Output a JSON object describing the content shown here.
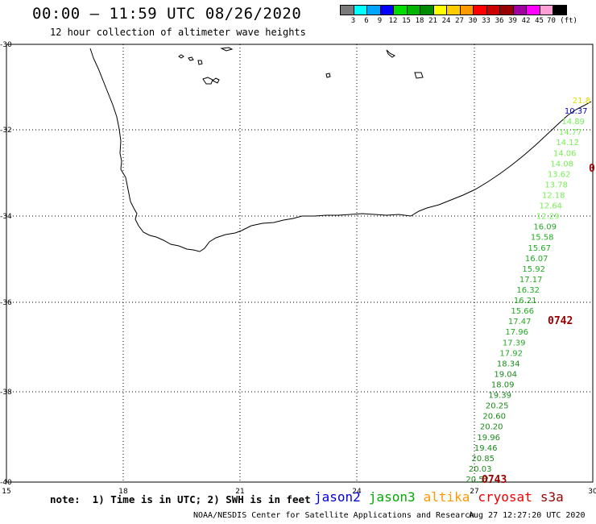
{
  "header": {
    "title": "00:00 – 11:59 UTC 08/26/2020",
    "subtitle": "12 hour collection of altimeter wave heights"
  },
  "colorbar": {
    "colors": [
      "#7a7a7a",
      "#00ffff",
      "#00a5ff",
      "#0000ff",
      "#00dd00",
      "#00b400",
      "#008a00",
      "#ffff00",
      "#ffcc00",
      "#ff9900",
      "#ff0000",
      "#cc0000",
      "#990000",
      "#a000a0",
      "#ff00ff",
      "#ff9fd6",
      "#000000"
    ],
    "labels": [
      "3",
      "6",
      "9",
      "12",
      "15",
      "18",
      "21",
      "24",
      "27",
      "30",
      "33",
      "36",
      "39",
      "42",
      "45",
      "70 (ft)"
    ]
  },
  "map": {
    "lat_labels": [
      "-30",
      "-32",
      "-34",
      "-36",
      "-38",
      "-40"
    ],
    "lon_labels": [
      "15",
      "18",
      "21",
      "24",
      "27",
      "30"
    ]
  },
  "track_readings": [
    {
      "value": "21.8",
      "color": "#e0e000"
    },
    {
      "value": "10.37",
      "color": "#0000cc"
    },
    {
      "value": "14.89",
      "color": "#77ee55"
    },
    {
      "value": "14.77",
      "color": "#77ee55"
    },
    {
      "value": "14.12",
      "color": "#77ee55"
    },
    {
      "value": "14.06",
      "color": "#77ee55"
    },
    {
      "value": "14.08",
      "color": "#77ee55"
    },
    {
      "value": "13.62",
      "color": "#77ee55"
    },
    {
      "value": "13.78",
      "color": "#77ee55"
    },
    {
      "value": "12.18",
      "color": "#77ee55"
    },
    {
      "value": "12.64",
      "color": "#77ee55"
    },
    {
      "value": "12.29",
      "color": "#77ee55"
    },
    {
      "value": "16.09",
      "color": "#22aa22"
    },
    {
      "value": "15.58",
      "color": "#22aa22"
    },
    {
      "value": "15.67",
      "color": "#22aa22"
    },
    {
      "value": "16.07",
      "color": "#22aa22"
    },
    {
      "value": "15.92",
      "color": "#22aa22"
    },
    {
      "value": "17.17",
      "color": "#22aa22"
    },
    {
      "value": "16.32",
      "color": "#22aa22"
    },
    {
      "value": "16.21",
      "color": "#22aa22"
    },
    {
      "value": "15.66",
      "color": "#22aa22"
    },
    {
      "value": "17.47",
      "color": "#22aa22"
    },
    {
      "value": "17.96",
      "color": "#22aa22"
    },
    {
      "value": "17.39",
      "color": "#22aa22"
    },
    {
      "value": "17.92",
      "color": "#22aa22"
    },
    {
      "value": "18.34",
      "color": "#1a8a1a"
    },
    {
      "value": "19.04",
      "color": "#1a8a1a"
    },
    {
      "value": "18.09",
      "color": "#1a8a1a"
    },
    {
      "value": "19.39",
      "color": "#1a8a1a"
    },
    {
      "value": "20.25",
      "color": "#1a8a1a"
    },
    {
      "value": "20.60",
      "color": "#1a8a1a"
    },
    {
      "value": "20.20",
      "color": "#1a8a1a"
    },
    {
      "value": "19.96",
      "color": "#1a8a1a"
    },
    {
      "value": "19.46",
      "color": "#1a8a1a"
    },
    {
      "value": "20.85",
      "color": "#1a8a1a"
    },
    {
      "value": "20.03",
      "color": "#1a8a1a"
    },
    {
      "value": "20.52",
      "color": "#1a8a1a"
    }
  ],
  "pass_labels": [
    {
      "text": "0",
      "color": "#990000"
    },
    {
      "text": "0742",
      "color": "#990000"
    },
    {
      "text": "0743",
      "color": "#990000"
    }
  ],
  "footer": {
    "note": "note:  1) Time is in UTC; 2) SWH is in feet",
    "legend": [
      {
        "text": "jason2",
        "color": "#0000dd"
      },
      {
        "text": "jason3",
        "color": "#00aa00"
      },
      {
        "text": "altika",
        "color": "#ff9900"
      },
      {
        "text": "cryosat",
        "color": "#ee0000"
      },
      {
        "text": "s3a",
        "color": "#990000"
      }
    ],
    "credit": "NOAA/NESDIS Center for Satellite Applications and Research",
    "date": "Aug 27 12:27:20 UTC 2020"
  }
}
